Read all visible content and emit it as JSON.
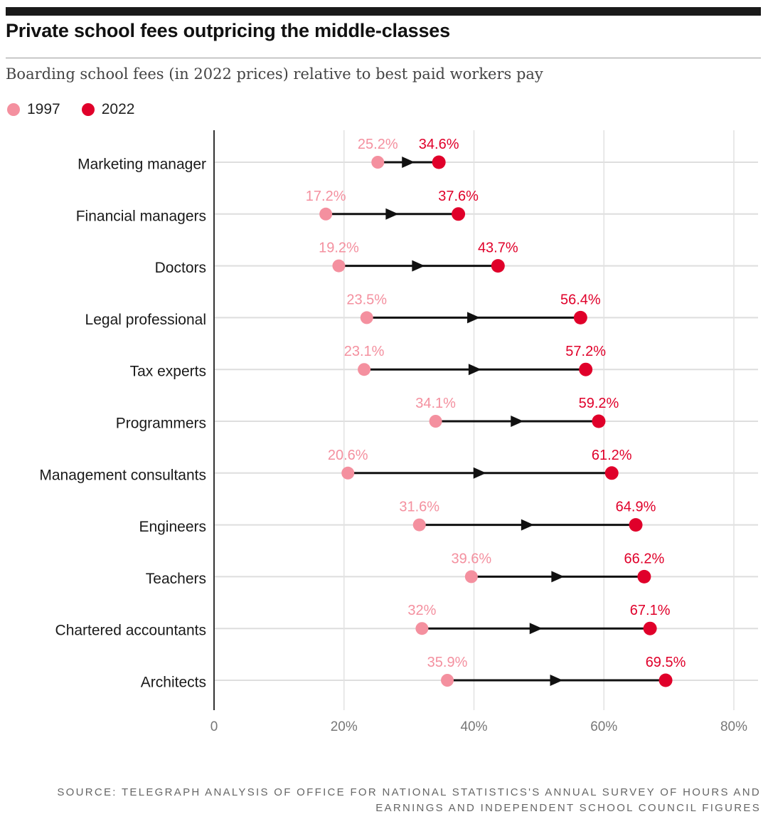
{
  "header": {
    "title": "Private school fees outpricing the middle-classes",
    "subtitle": "Boarding school fees (in 2022 prices) relative to best paid workers pay"
  },
  "legend": {
    "items": [
      {
        "label": "1997",
        "color": "#f4909f"
      },
      {
        "label": "2022",
        "color": "#e0002a"
      }
    ]
  },
  "footer": {
    "source_line1": "SOURCE: TELEGRAPH ANALYSIS OF OFFICE FOR NATIONAL STATISTICS'S ANNUAL SURVEY OF HOURS AND",
    "source_line2": "EARNINGS AND INDEPENDENT SCHOOL COUNCIL FIGURES"
  },
  "chart_data": {
    "type": "dumbbell",
    "categories": [
      "Marketing manager",
      "Financial managers",
      "Doctors",
      "Legal professional",
      "Tax experts",
      "Programmers",
      "Management consultants",
      "Engineers",
      "Teachers",
      "Chartered accountants",
      "Architects"
    ],
    "series": [
      {
        "name": "1997",
        "color": "#f4909f",
        "values": [
          25.2,
          17.2,
          19.2,
          23.5,
          23.1,
          34.1,
          20.6,
          31.6,
          39.6,
          32,
          35.9
        ],
        "labels": [
          "25.2%",
          "17.2%",
          "19.2%",
          "23.5%",
          "23.1%",
          "34.1%",
          "20.6%",
          "31.6%",
          "39.6%",
          "32%",
          "35.9%"
        ]
      },
      {
        "name": "2022",
        "color": "#e0002a",
        "values": [
          34.6,
          37.6,
          43.7,
          56.4,
          57.2,
          59.2,
          61.2,
          64.9,
          66.2,
          67.1,
          69.5
        ],
        "labels": [
          "34.6%",
          "37.6%",
          "43.7%",
          "56.4%",
          "57.2%",
          "59.2%",
          "61.2%",
          "64.9%",
          "66.2%",
          "67.1%",
          "69.5%"
        ]
      }
    ],
    "xlim": [
      0,
      80
    ],
    "x_ticks": [
      0,
      20,
      40,
      60,
      80
    ],
    "x_tick_labels": [
      "0",
      "20%",
      "40%",
      "60%",
      "80%"
    ],
    "grid": true,
    "legend_position": "top-left"
  }
}
